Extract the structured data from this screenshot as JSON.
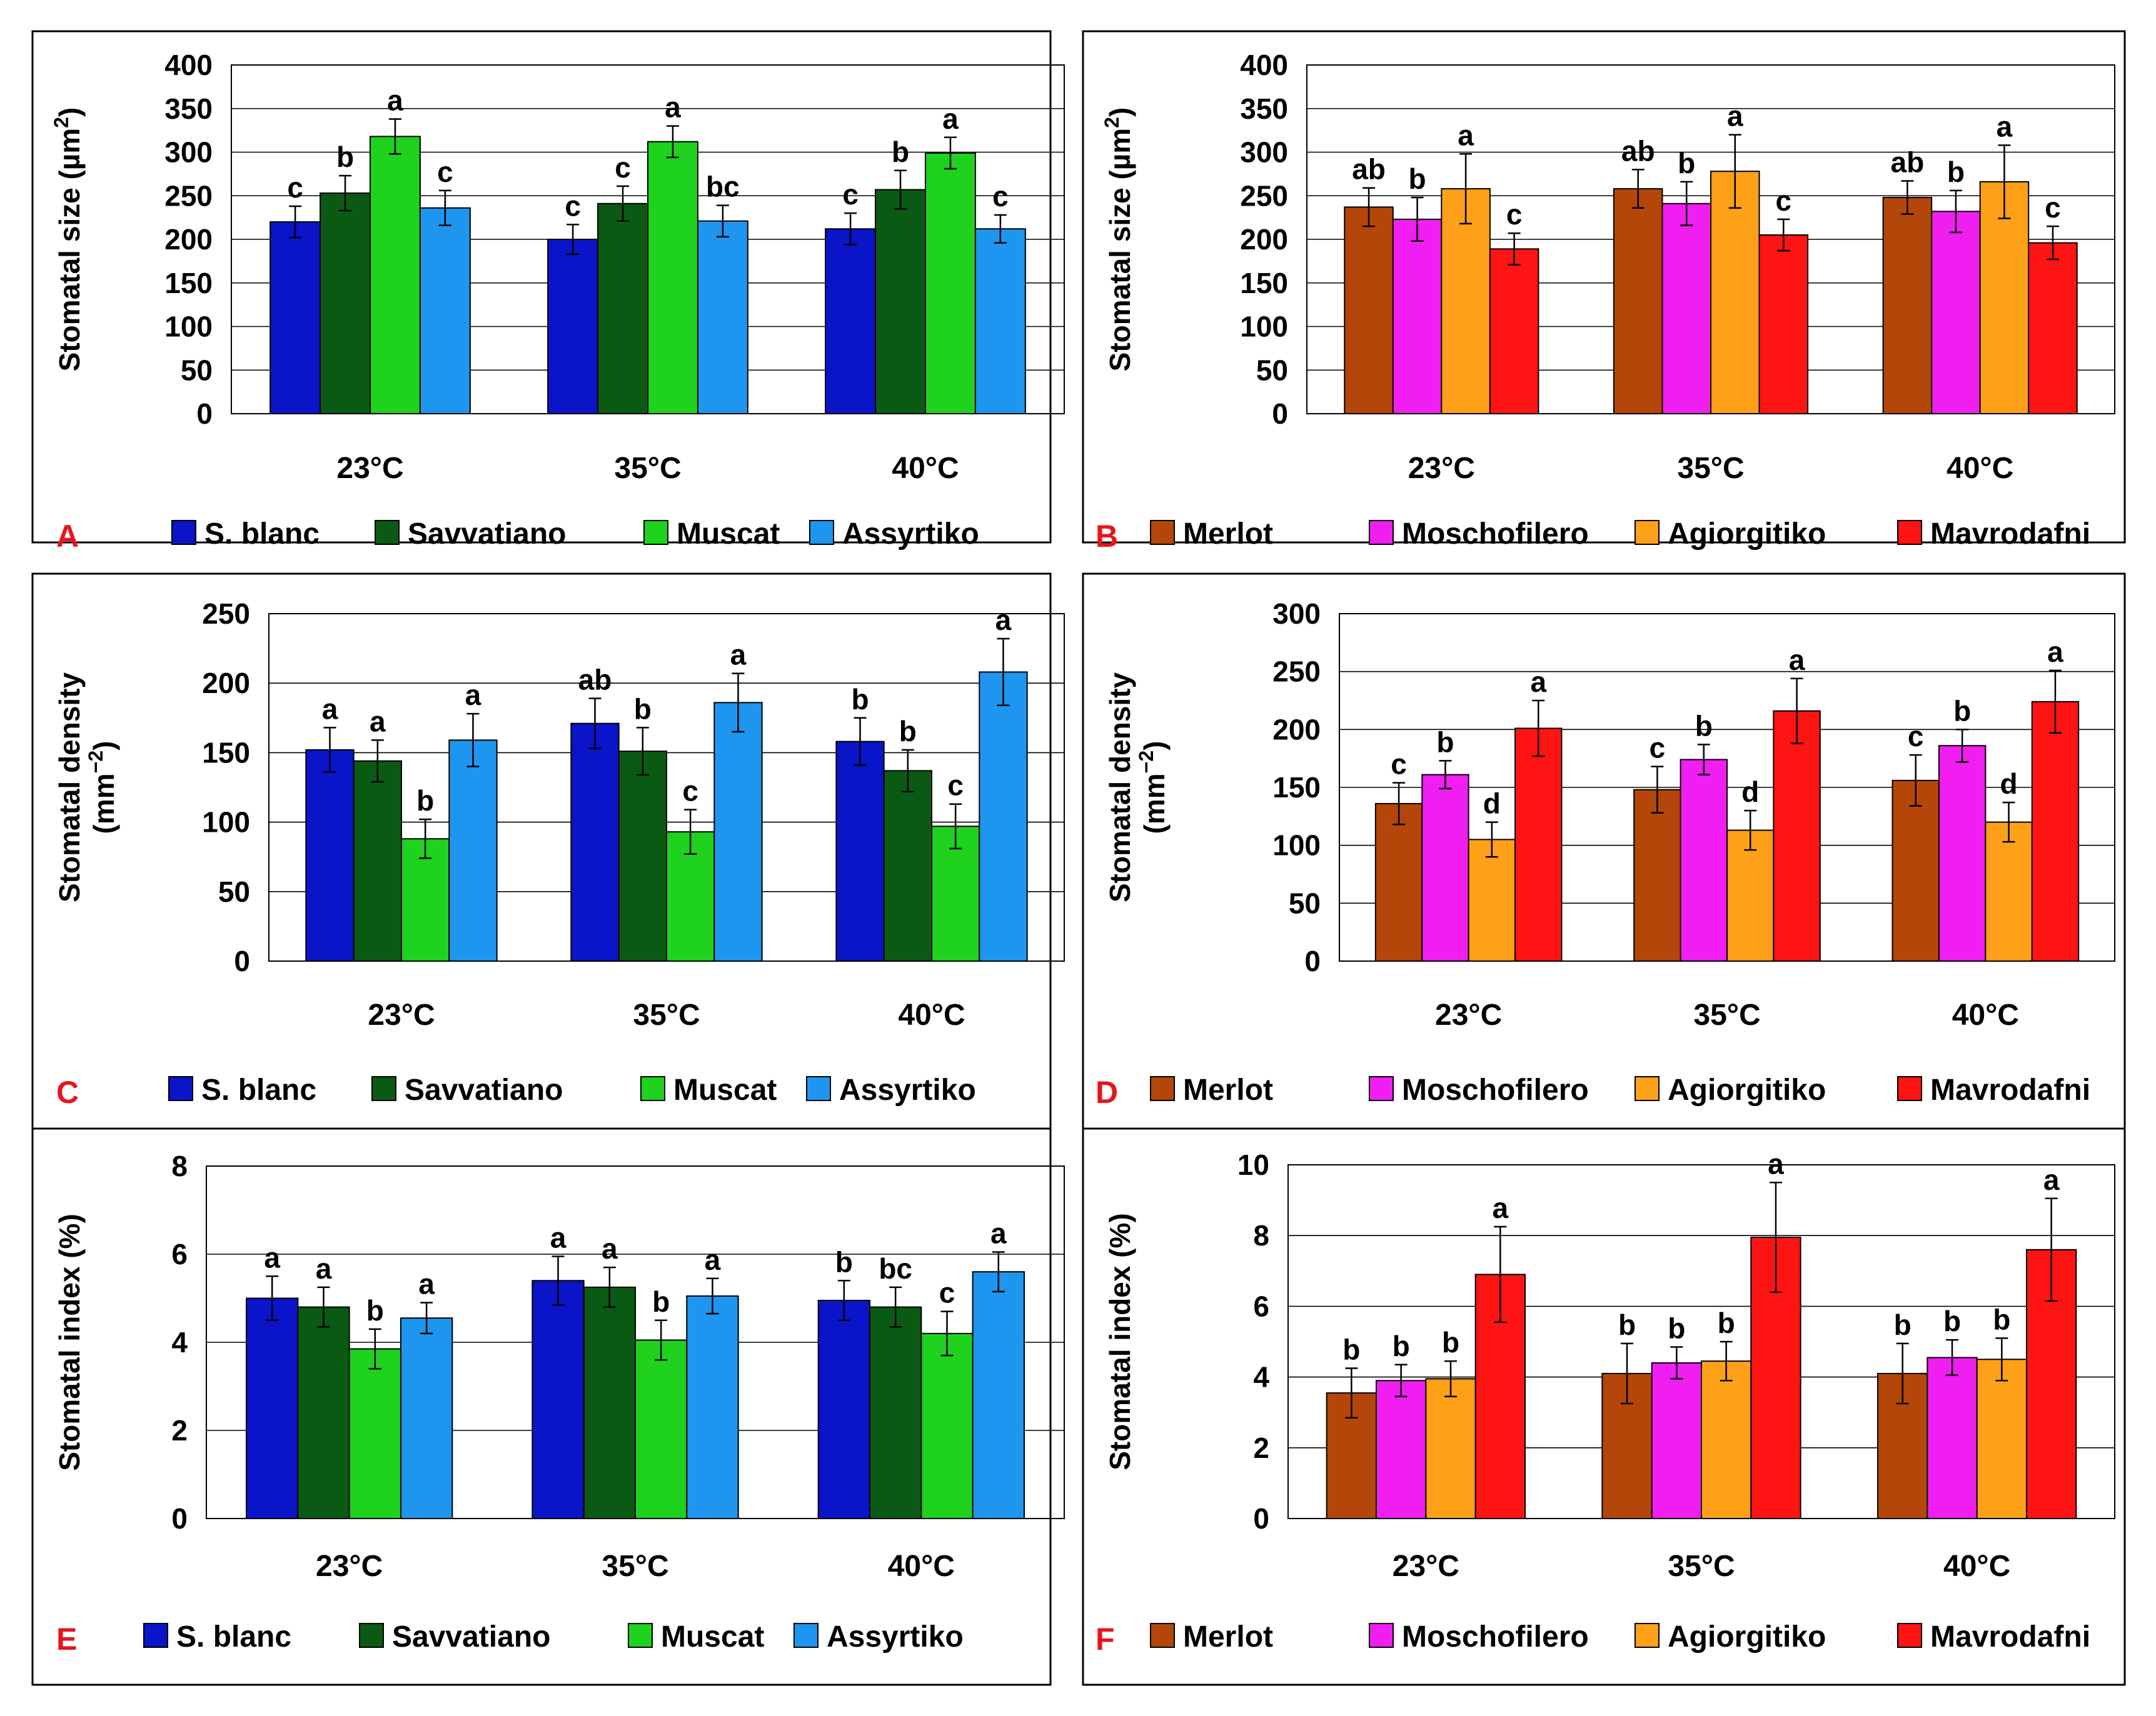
{
  "chart_data": [
    {
      "panel": "A",
      "type": "bar",
      "categories": [
        "23°C",
        "35°C",
        "40°C"
      ],
      "ylabel": "Stomatal size (µm²)",
      "ylabel_main": "Stomatal size (µm",
      "ylabel_sup": "2",
      "ylabel_end": ")",
      "ylim": [
        0,
        400
      ],
      "yticks": [
        0,
        50,
        100,
        150,
        200,
        250,
        300,
        350,
        400
      ],
      "series": [
        {
          "name": "S. blanc",
          "color": "#0a14c8",
          "values": [
            220,
            200,
            212
          ],
          "errors": [
            18,
            17,
            18
          ],
          "letters": [
            "c",
            "c",
            "c"
          ]
        },
        {
          "name": "Savvatiano",
          "color": "#0b5a14",
          "values": [
            253,
            241,
            257
          ],
          "errors": [
            20,
            20,
            22
          ],
          "letters": [
            "b",
            "c",
            "b"
          ]
        },
        {
          "name": "Muscat",
          "color": "#1ed21e",
          "values": [
            318,
            312,
            299
          ],
          "errors": [
            20,
            18,
            18
          ],
          "letters": [
            "a",
            "a",
            "a"
          ]
        },
        {
          "name": "Assyrtiko",
          "color": "#1e96f0",
          "values": [
            236,
            221,
            212
          ],
          "errors": [
            20,
            18,
            16
          ],
          "letters": [
            "c",
            "bc",
            "c"
          ]
        }
      ]
    },
    {
      "panel": "B",
      "type": "bar",
      "categories": [
        "23°C",
        "35°C",
        "40°C"
      ],
      "ylabel": "Stomatal size (µm²)",
      "ylabel_main": "Stomatal size (µm",
      "ylabel_sup": "2",
      "ylabel_end": ")",
      "ylim": [
        0,
        400
      ],
      "yticks": [
        0,
        50,
        100,
        150,
        200,
        250,
        300,
        350,
        400
      ],
      "series": [
        {
          "name": "Merlot",
          "color": "#b4460a",
          "values": [
            237,
            258,
            248
          ],
          "errors": [
            22,
            22,
            19
          ],
          "letters": [
            "ab",
            "ab",
            "ab"
          ]
        },
        {
          "name": "Moschofilero",
          "color": "#f01ef0",
          "values": [
            223,
            241,
            232
          ],
          "errors": [
            25,
            25,
            24
          ],
          "letters": [
            "b",
            "b",
            "b"
          ]
        },
        {
          "name": "Agiorgitiko",
          "color": "#ffa019",
          "values": [
            258,
            278,
            266
          ],
          "errors": [
            40,
            42,
            42
          ],
          "letters": [
            "a",
            "a",
            "a"
          ]
        },
        {
          "name": "Mavrodafni",
          "color": "#ff1414",
          "values": [
            189,
            205,
            196
          ],
          "errors": [
            18,
            18,
            19
          ],
          "letters": [
            "c",
            "c",
            "c"
          ]
        }
      ]
    },
    {
      "panel": "C",
      "type": "bar",
      "categories": [
        "23°C",
        "35°C",
        "40°C"
      ],
      "ylabel": "Stomatal density (mm⁻²)",
      "ylabel_line1": "Stomatal density",
      "ylabel_line2": "(mm",
      "ylabel_sup": "−2",
      "ylabel_end": ")",
      "ylim": [
        0,
        250
      ],
      "yticks": [
        0,
        50,
        100,
        150,
        200,
        250
      ],
      "series": [
        {
          "name": "S. blanc",
          "color": "#0a14c8",
          "values": [
            152,
            171,
            158
          ],
          "errors": [
            16,
            18,
            17
          ],
          "letters": [
            "a",
            "ab",
            "b"
          ]
        },
        {
          "name": "Savvatiano",
          "color": "#0b5a14",
          "values": [
            144,
            151,
            137
          ],
          "errors": [
            15,
            17,
            15
          ],
          "letters": [
            "a",
            "b",
            "b"
          ]
        },
        {
          "name": "Muscat",
          "color": "#1ed21e",
          "values": [
            88,
            93,
            97
          ],
          "errors": [
            14,
            16,
            16
          ],
          "letters": [
            "b",
            "c",
            "c"
          ]
        },
        {
          "name": "Assyrtiko",
          "color": "#1e96f0",
          "values": [
            159,
            186,
            208
          ],
          "errors": [
            19,
            21,
            24
          ],
          "letters": [
            "a",
            "a",
            "a"
          ]
        }
      ]
    },
    {
      "panel": "D",
      "type": "bar",
      "categories": [
        "23°C",
        "35°C",
        "40°C"
      ],
      "ylabel": "Stomatal density (mm⁻²)",
      "ylabel_line1": "Stomatal density",
      "ylabel_line2": "(mm",
      "ylabel_sup": "−2",
      "ylabel_end": ")",
      "ylim": [
        0,
        300
      ],
      "yticks": [
        0,
        50,
        100,
        150,
        200,
        250,
        300
      ],
      "series": [
        {
          "name": "Merlot",
          "color": "#b4460a",
          "values": [
            136,
            148,
            156
          ],
          "errors": [
            18,
            20,
            22
          ],
          "letters": [
            "c",
            "c",
            "c"
          ]
        },
        {
          "name": "Moschofilero",
          "color": "#f01ef0",
          "values": [
            161,
            174,
            186
          ],
          "errors": [
            12,
            13,
            14
          ],
          "letters": [
            "b",
            "b",
            "b"
          ]
        },
        {
          "name": "Agiorgitiko",
          "color": "#ffa019",
          "values": [
            105,
            113,
            120
          ],
          "errors": [
            15,
            17,
            17
          ],
          "letters": [
            "d",
            "d",
            "d"
          ]
        },
        {
          "name": "Mavrodafni",
          "color": "#ff1414",
          "values": [
            201,
            216,
            224
          ],
          "errors": [
            24,
            28,
            27
          ],
          "letters": [
            "a",
            "a",
            "a"
          ]
        }
      ]
    },
    {
      "panel": "E",
      "type": "bar",
      "categories": [
        "23°C",
        "35°C",
        "40°C"
      ],
      "ylabel": "Stomatal index (%)",
      "ylim": [
        0,
        8
      ],
      "yticks": [
        0,
        2,
        4,
        6,
        8
      ],
      "series": [
        {
          "name": "S. blanc",
          "color": "#0a14c8",
          "values": [
            5.0,
            5.4,
            4.95
          ],
          "errors": [
            0.5,
            0.55,
            0.45
          ],
          "letters": [
            "a",
            "a",
            "b"
          ]
        },
        {
          "name": "Savvatiano",
          "color": "#0b5a14",
          "values": [
            4.8,
            5.25,
            4.8
          ],
          "errors": [
            0.45,
            0.45,
            0.45
          ],
          "letters": [
            "a",
            "a",
            "bc"
          ]
        },
        {
          "name": "Muscat",
          "color": "#1ed21e",
          "values": [
            3.85,
            4.05,
            4.2
          ],
          "errors": [
            0.45,
            0.45,
            0.5
          ],
          "letters": [
            "b",
            "b",
            "c"
          ]
        },
        {
          "name": "Assyrtiko",
          "color": "#1e96f0",
          "values": [
            4.55,
            5.05,
            5.6
          ],
          "errors": [
            0.35,
            0.4,
            0.45
          ],
          "letters": [
            "a",
            "a",
            "a"
          ]
        }
      ]
    },
    {
      "panel": "F",
      "type": "bar",
      "categories": [
        "23°C",
        "35°C",
        "40°C"
      ],
      "ylabel": "Stomatal index (%)",
      "ylim": [
        0,
        10
      ],
      "yticks": [
        0,
        2,
        4,
        6,
        8,
        10
      ],
      "series": [
        {
          "name": "Merlot",
          "color": "#b4460a",
          "values": [
            3.55,
            4.1,
            4.1
          ],
          "errors": [
            0.7,
            0.85,
            0.85
          ],
          "letters": [
            "b",
            "b",
            "b"
          ]
        },
        {
          "name": "Moschofilero",
          "color": "#f01ef0",
          "values": [
            3.9,
            4.4,
            4.55
          ],
          "errors": [
            0.45,
            0.45,
            0.5
          ],
          "letters": [
            "b",
            "b",
            "b"
          ]
        },
        {
          "name": "Agiorgitiko",
          "color": "#ffa019",
          "values": [
            3.95,
            4.45,
            4.5
          ],
          "errors": [
            0.5,
            0.55,
            0.6
          ],
          "letters": [
            "b",
            "b",
            "b"
          ]
        },
        {
          "name": "Mavrodafni",
          "color": "#ff1414",
          "values": [
            6.9,
            7.95,
            7.6
          ],
          "errors": [
            1.35,
            1.55,
            1.45
          ],
          "letters": [
            "a",
            "a",
            "a"
          ]
        }
      ]
    }
  ]
}
